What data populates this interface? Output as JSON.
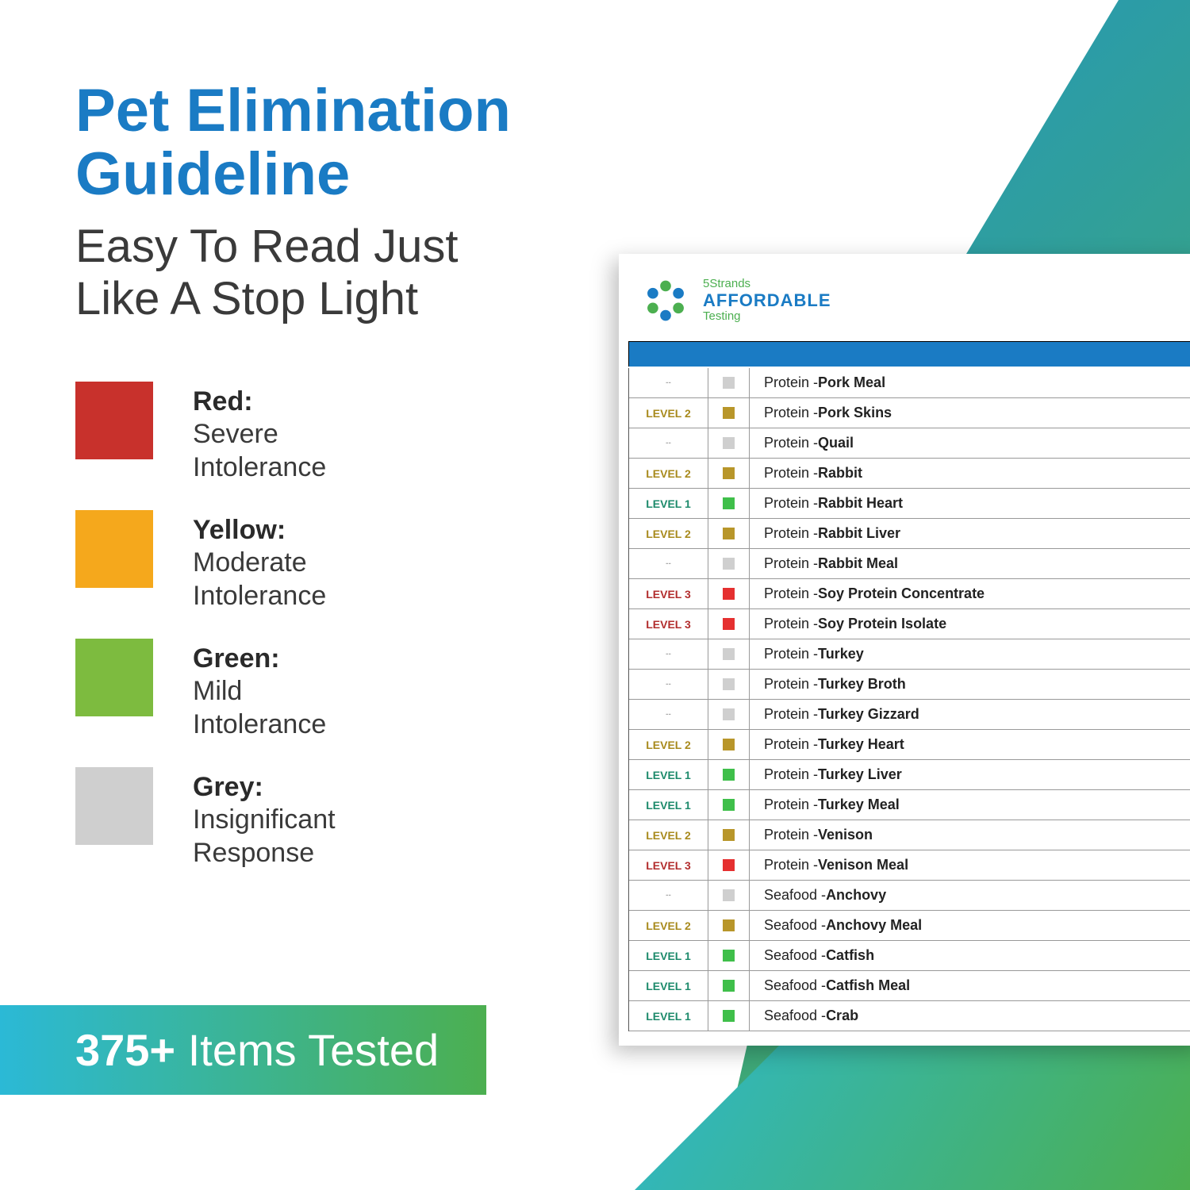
{
  "title": "Pet Elimination Guideline",
  "subtitle": "Easy To Read Just Like A Stop Light",
  "legend": [
    {
      "label": "Red:",
      "desc": "Severe Intolerance",
      "color": "#c8312c"
    },
    {
      "label": "Yellow:",
      "desc": "Moderate Intolerance",
      "color": "#f5a81c"
    },
    {
      "label": "Green:",
      "desc": "Mild Intolerance",
      "color": "#7dbb3f"
    },
    {
      "label": "Grey:",
      "desc": "Insignificant Response",
      "color": "#cfcfcf"
    }
  ],
  "banner": {
    "bold": "375+",
    "rest": " Items Tested"
  },
  "logo": {
    "line1": "5Strands",
    "line2": "AFFORDABLE",
    "line3": "Testing"
  },
  "level_colors": {
    "none": {
      "text": "#aaaaaa",
      "sq": "#cfcfcf"
    },
    "1": {
      "text": "#1d8a6b",
      "sq": "#3fbf4a"
    },
    "2": {
      "text": "#a88a1d",
      "sq": "#b8962a"
    },
    "3": {
      "text": "#b22d2d",
      "sq": "#e53030"
    }
  },
  "rows": [
    {
      "level": "",
      "level_key": "none",
      "cat": "Protein",
      "name": "Pork Meal"
    },
    {
      "level": "LEVEL 2",
      "level_key": "2",
      "cat": "Protein",
      "name": "Pork Skins"
    },
    {
      "level": "",
      "level_key": "none",
      "cat": "Protein",
      "name": "Quail"
    },
    {
      "level": "LEVEL 2",
      "level_key": "2",
      "cat": "Protein",
      "name": "Rabbit"
    },
    {
      "level": "LEVEL 1",
      "level_key": "1",
      "cat": "Protein",
      "name": "Rabbit Heart"
    },
    {
      "level": "LEVEL 2",
      "level_key": "2",
      "cat": "Protein",
      "name": "Rabbit Liver"
    },
    {
      "level": "",
      "level_key": "none",
      "cat": "Protein",
      "name": "Rabbit Meal"
    },
    {
      "level": "LEVEL 3",
      "level_key": "3",
      "cat": "Protein",
      "name": "Soy Protein Concentrate"
    },
    {
      "level": "LEVEL 3",
      "level_key": "3",
      "cat": "Protein",
      "name": "Soy Protein Isolate"
    },
    {
      "level": "",
      "level_key": "none",
      "cat": "Protein",
      "name": "Turkey"
    },
    {
      "level": "",
      "level_key": "none",
      "cat": "Protein",
      "name": "Turkey Broth"
    },
    {
      "level": "",
      "level_key": "none",
      "cat": "Protein",
      "name": "Turkey Gizzard"
    },
    {
      "level": "LEVEL 2",
      "level_key": "2",
      "cat": "Protein",
      "name": "Turkey Heart"
    },
    {
      "level": "LEVEL 1",
      "level_key": "1",
      "cat": "Protein",
      "name": "Turkey Liver"
    },
    {
      "level": "LEVEL 1",
      "level_key": "1",
      "cat": "Protein",
      "name": "Turkey Meal"
    },
    {
      "level": "LEVEL 2",
      "level_key": "2",
      "cat": "Protein",
      "name": "Venison"
    },
    {
      "level": "LEVEL 3",
      "level_key": "3",
      "cat": "Protein",
      "name": "Venison Meal"
    },
    {
      "level": "",
      "level_key": "none",
      "cat": "Seafood",
      "name": "Anchovy"
    },
    {
      "level": "LEVEL 2",
      "level_key": "2",
      "cat": "Seafood",
      "name": "Anchovy Meal"
    },
    {
      "level": "LEVEL 1",
      "level_key": "1",
      "cat": "Seafood",
      "name": "Catfish"
    },
    {
      "level": "LEVEL 1",
      "level_key": "1",
      "cat": "Seafood",
      "name": "Catfish Meal"
    },
    {
      "level": "LEVEL 1",
      "level_key": "1",
      "cat": "Seafood",
      "name": "Crab"
    }
  ]
}
